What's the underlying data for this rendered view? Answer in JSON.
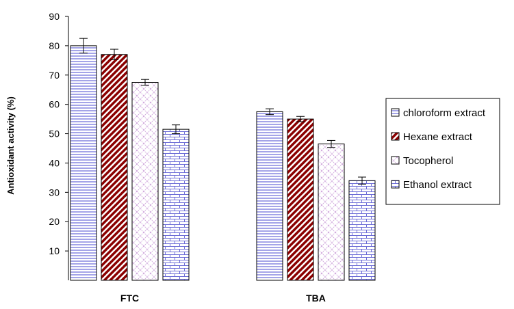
{
  "chart_data": {
    "type": "bar",
    "categories": [
      "FTC",
      "TBA"
    ],
    "series": [
      {
        "name": "chloroform extract",
        "values": [
          80,
          57.5
        ],
        "errors": [
          2.5,
          1.0
        ],
        "pattern": "horizontal-lines",
        "color": "#5b5bd6"
      },
      {
        "name": "Hexane extract",
        "values": [
          77,
          55
        ],
        "errors": [
          1.8,
          0.9
        ],
        "pattern": "diagonal-stripes",
        "color": "#8b0000"
      },
      {
        "name": "Tocopherol",
        "values": [
          67.5,
          46.5
        ],
        "errors": [
          1.0,
          1.2
        ],
        "pattern": "lattice",
        "color": "#c9a0dc"
      },
      {
        "name": "Ethanol extract",
        "values": [
          51.5,
          34
        ],
        "errors": [
          1.5,
          1.2
        ],
        "pattern": "brick",
        "color": "#6b6bd6"
      }
    ],
    "ylabel": "Antioxidant activity (%)",
    "xlabel": "",
    "ylim": [
      0,
      90
    ],
    "yticks": [
      "10",
      "20",
      "30",
      "40",
      "50",
      "60",
      "70",
      "80",
      "90"
    ],
    "grid": false,
    "legend": "right"
  }
}
